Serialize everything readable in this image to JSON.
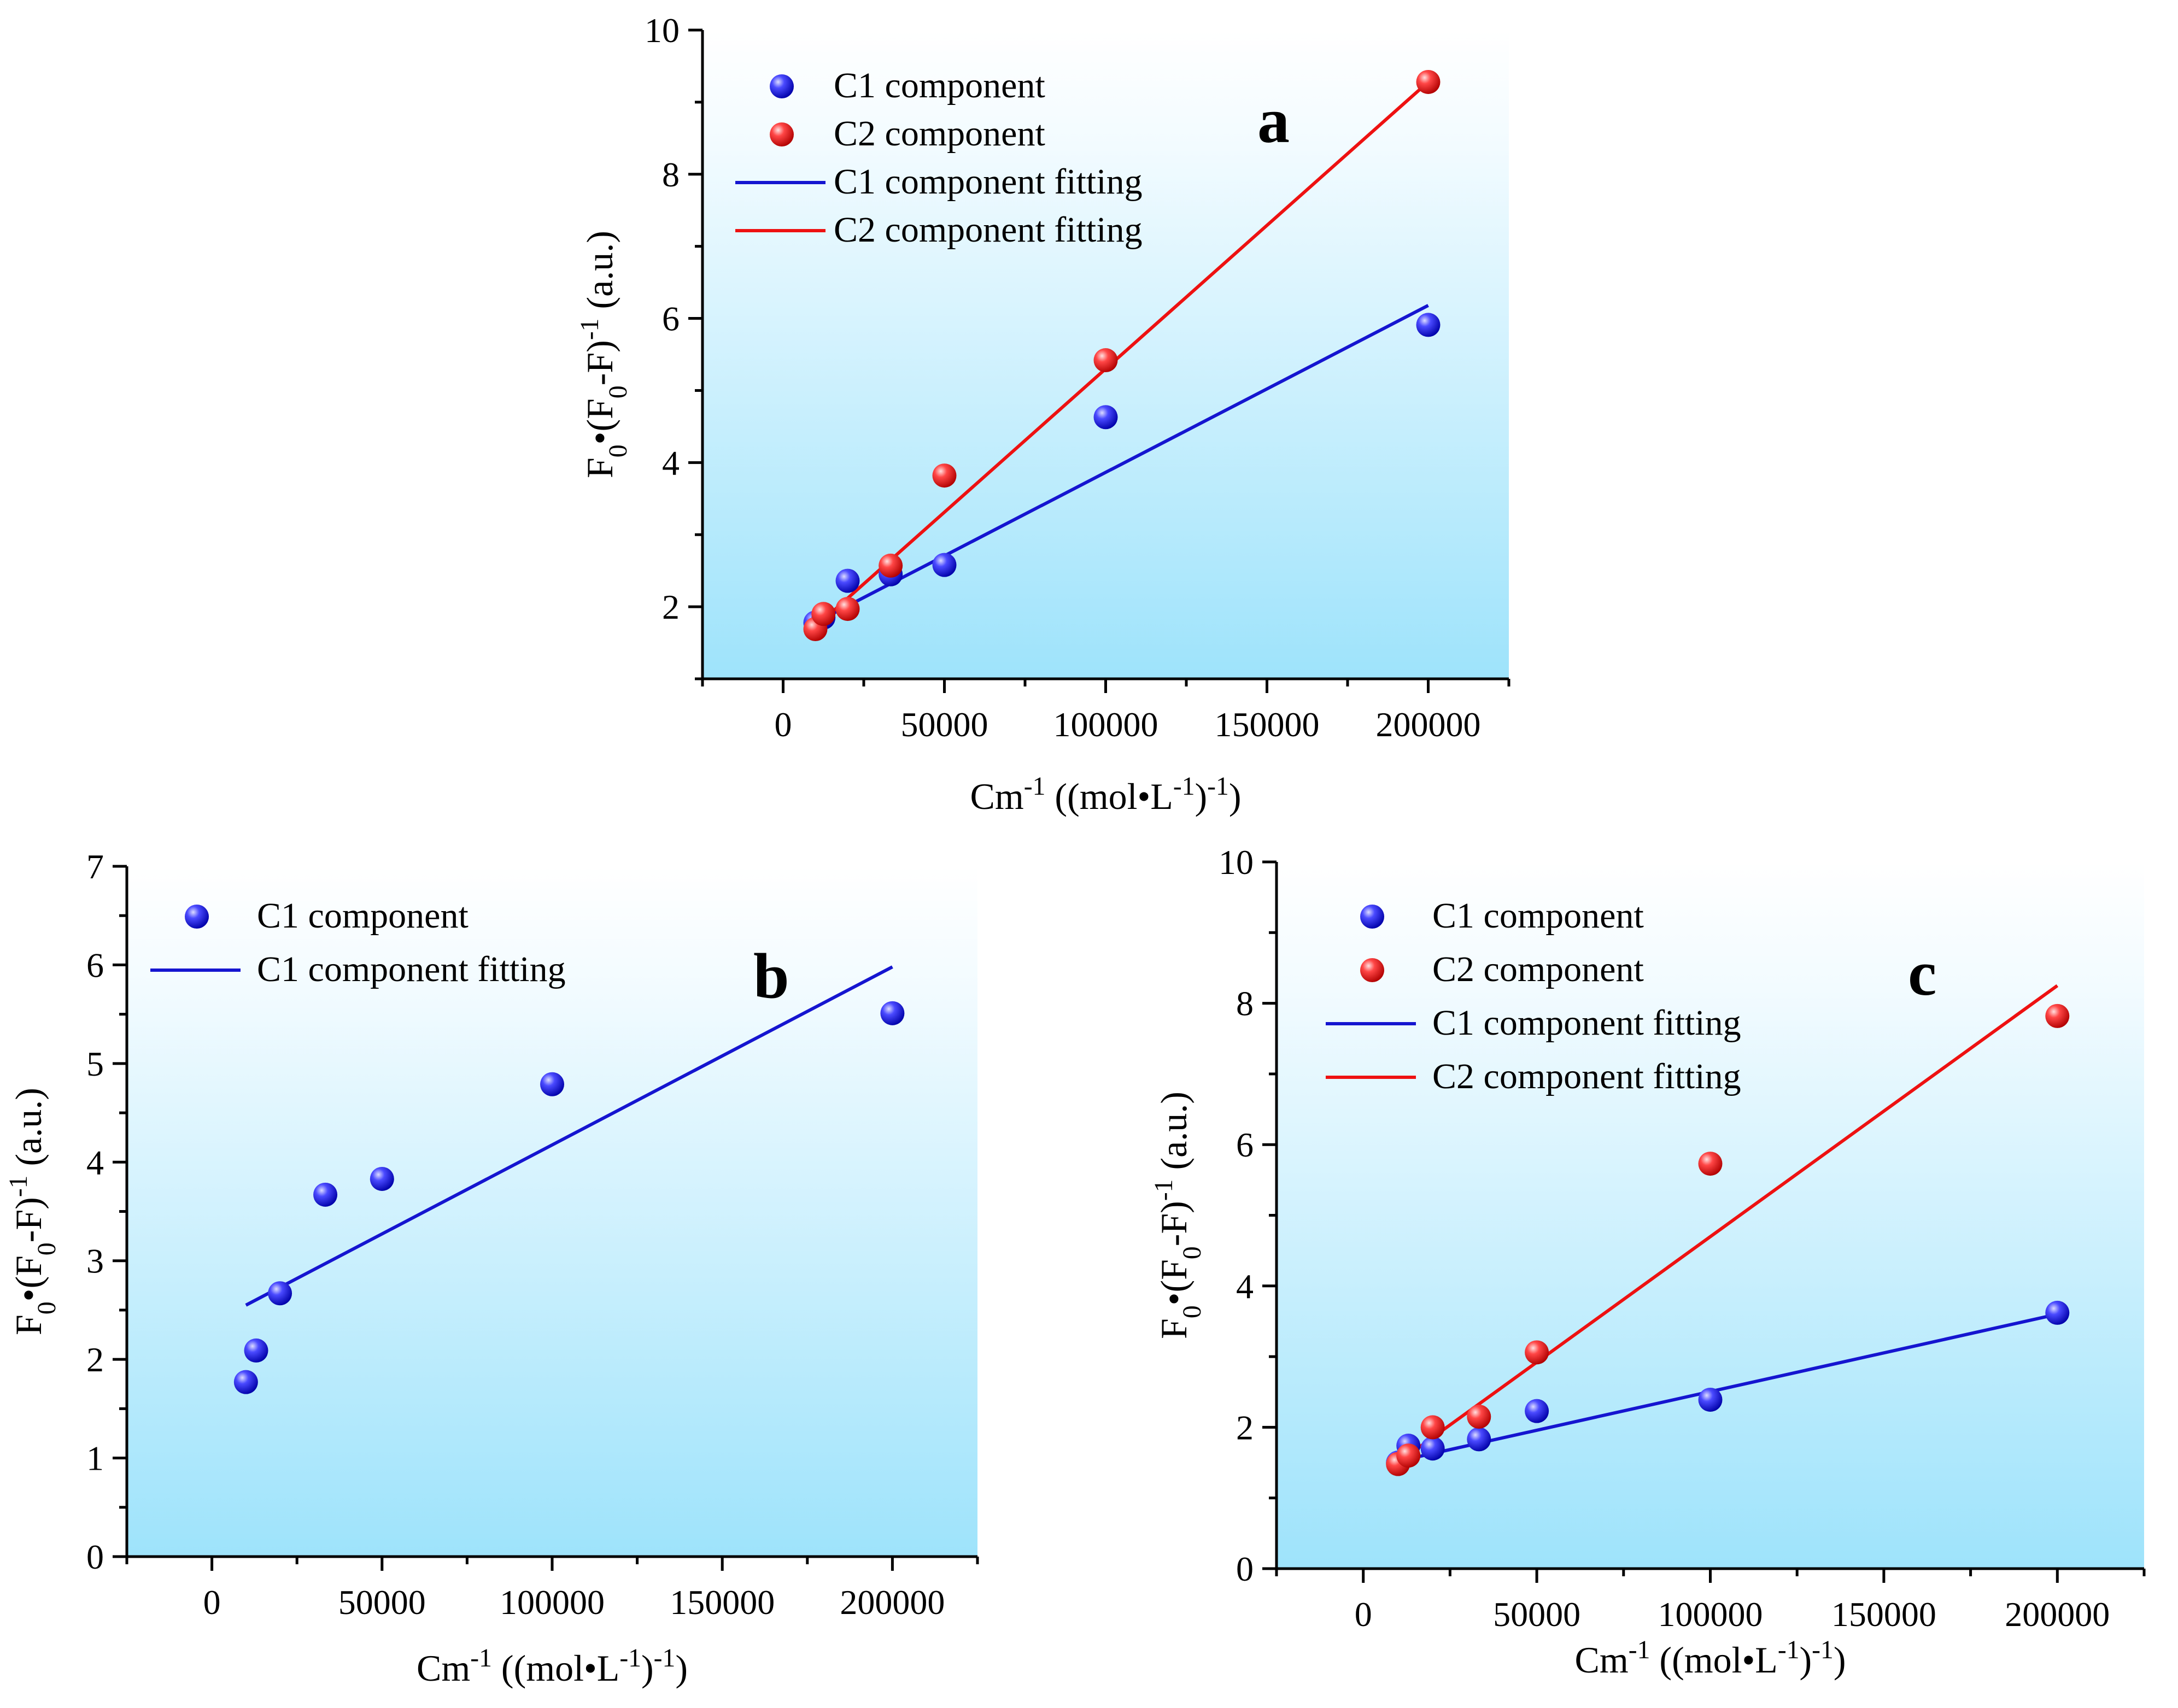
{
  "chart_data": [
    {
      "panel": "a",
      "type": "scatter",
      "panel_label": "a",
      "title": "",
      "xlabel": {
        "base": "Cm",
        "sup1": "-1",
        "mid": " ((mol•L",
        "sup2": "-1",
        "mid2": ")",
        "sup3": "-1",
        "end": ")"
      },
      "ylabel": {
        "base": "F",
        "sub1": "0",
        "mid": "•(F",
        "sub2": "0",
        "mid2": "-F)",
        "sup": "-1",
        "end": " (a.u.)"
      },
      "xlim": [
        -25000,
        225000
      ],
      "ylim": [
        1,
        10
      ],
      "xticks": [
        0,
        50000,
        100000,
        150000,
        200000
      ],
      "xtick_labels": [
        "0",
        "50000",
        "100000",
        "150000",
        "200000"
      ],
      "yticks": [
        2,
        4,
        6,
        8,
        10
      ],
      "ytick_labels": [
        "2",
        "4",
        "6",
        "8",
        "10"
      ],
      "legend_position": "top-left",
      "series": [
        {
          "name": "C1 component",
          "kind": "points",
          "color": "#1f1fe0",
          "x": [
            10000,
            12500,
            20000,
            33333,
            50000,
            100000,
            200000
          ],
          "y": [
            1.78,
            1.85,
            2.36,
            2.45,
            2.58,
            4.63,
            5.91
          ]
        },
        {
          "name": "C2 component",
          "kind": "points",
          "color": "#ff2a2a",
          "x": [
            10000,
            12500,
            20000,
            33333,
            50000,
            100000,
            200000
          ],
          "y": [
            1.69,
            1.9,
            1.97,
            2.57,
            3.82,
            5.42,
            9.28
          ]
        },
        {
          "name": "C1 component fitting",
          "kind": "line",
          "color": "#1515d0",
          "x": [
            10000,
            200000
          ],
          "y": [
            1.78,
            6.18
          ]
        },
        {
          "name": "C2 component fitting",
          "kind": "line",
          "color": "#ee1111",
          "x": [
            10000,
            200000
          ],
          "y": [
            1.72,
            9.28
          ]
        }
      ]
    },
    {
      "panel": "b",
      "type": "scatter",
      "panel_label": "b",
      "title": "",
      "xlabel": {
        "base": "Cm",
        "sup1": "-1",
        "mid": " ((mol•L",
        "sup2": "-1",
        "mid2": ")",
        "sup3": "-1",
        "end": ")"
      },
      "ylabel": {
        "base": "F",
        "sub1": "0",
        "mid": "•(F",
        "sub2": "0",
        "mid2": "-F)",
        "sup": "-1",
        "end": " (a.u.)"
      },
      "xlim": [
        -25000,
        225000
      ],
      "ylim": [
        0,
        7
      ],
      "xticks": [
        0,
        50000,
        100000,
        150000,
        200000
      ],
      "xtick_labels": [
        "0",
        "50000",
        "100000",
        "150000",
        "200000"
      ],
      "yticks": [
        0,
        1,
        2,
        3,
        4,
        5,
        6,
        7
      ],
      "ytick_labels": [
        "0",
        "1",
        "2",
        "3",
        "4",
        "5",
        "6",
        "7"
      ],
      "legend_position": "top-left",
      "series": [
        {
          "name": "C1 component",
          "kind": "points",
          "color": "#1f1fe0",
          "x": [
            10000,
            13000,
            20000,
            33333,
            50000,
            100000,
            200000
          ],
          "y": [
            1.77,
            2.09,
            2.67,
            3.67,
            3.83,
            4.79,
            5.51
          ]
        },
        {
          "name": "C1 component fitting",
          "kind": "line",
          "color": "#1515d0",
          "x": [
            10000,
            200000
          ],
          "y": [
            2.55,
            5.98
          ]
        }
      ]
    },
    {
      "panel": "c",
      "type": "scatter",
      "panel_label": "c",
      "title": "",
      "xlabel": {
        "base": "Cm",
        "sup1": "-1",
        "mid": " ((mol•L",
        "sup2": "-1",
        "mid2": ")",
        "sup3": "-1",
        "end": ")"
      },
      "ylabel": {
        "base": "F",
        "sub1": "0",
        "mid": "•(F",
        "sub2": "0",
        "mid2": "-F)",
        "sup": "-1",
        "end": " (a.u.)"
      },
      "xlim": [
        -25000,
        225000
      ],
      "ylim": [
        0,
        10
      ],
      "xticks": [
        0,
        50000,
        100000,
        150000,
        200000
      ],
      "xtick_labels": [
        "0",
        "50000",
        "100000",
        "150000",
        "200000"
      ],
      "yticks": [
        0,
        2,
        4,
        6,
        8,
        10
      ],
      "ytick_labels": [
        "0",
        "2",
        "4",
        "6",
        "8",
        "10"
      ],
      "legend_position": "top-left",
      "series": [
        {
          "name": "C1 component",
          "kind": "points",
          "color": "#1f1fe0",
          "x": [
            10000,
            13000,
            20000,
            33333,
            50000,
            100000,
            200000
          ],
          "y": [
            1.5,
            1.74,
            1.7,
            1.83,
            2.23,
            2.39,
            3.62
          ]
        },
        {
          "name": "C2 component",
          "kind": "points",
          "color": "#ff2a2a",
          "x": [
            10000,
            13000,
            20000,
            33333,
            50000,
            100000,
            200000
          ],
          "y": [
            1.48,
            1.6,
            2.0,
            2.15,
            3.06,
            5.73,
            7.82
          ]
        },
        {
          "name": "C1 component fitting",
          "kind": "line",
          "color": "#1515d0",
          "x": [
            10000,
            200000
          ],
          "y": [
            1.52,
            3.6
          ]
        },
        {
          "name": "C2 component fitting",
          "kind": "line",
          "color": "#ee1111",
          "x": [
            10000,
            200000
          ],
          "y": [
            1.5,
            8.25
          ]
        }
      ]
    }
  ]
}
